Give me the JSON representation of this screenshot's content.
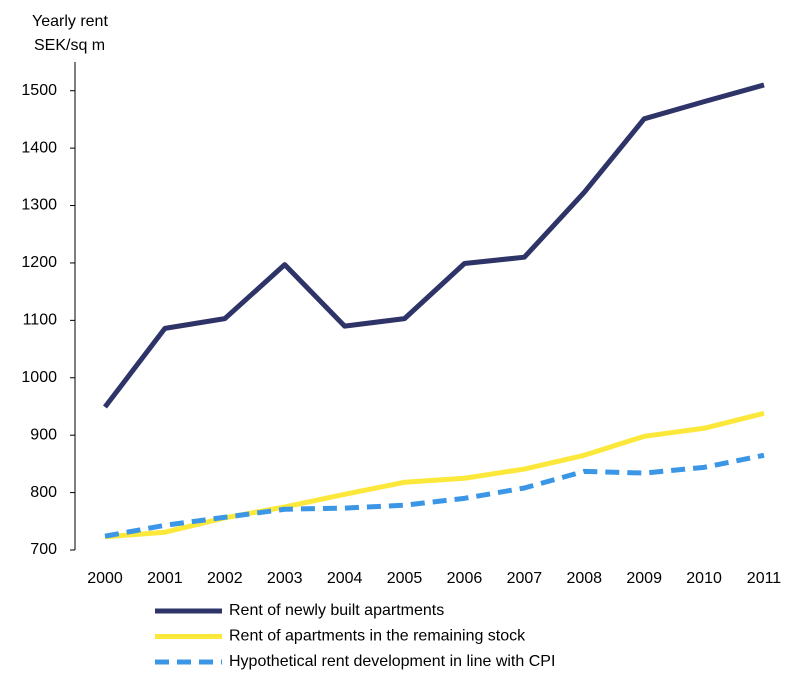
{
  "chart_data": {
    "type": "line",
    "ylabel": [
      "Yearly rent",
      "SEK/sq m"
    ],
    "categories": [
      "2000",
      "2001",
      "2002",
      "2003",
      "2004",
      "2005",
      "2006",
      "2007",
      "2008",
      "2009",
      "2010",
      "2011"
    ],
    "series": [
      {
        "name": "Rent of newly built apartments",
        "color": "#2e3467",
        "style": "solid",
        "values": [
          949,
          1086,
          1103,
          1197,
          1090,
          1103,
          1199,
          1210,
          1323,
          1451,
          1481,
          1510
        ]
      },
      {
        "name": "Rent of apartments in the remaining stock",
        "color": "#fce83a",
        "style": "solid",
        "values": [
          723,
          731,
          756,
          775,
          797,
          818,
          825,
          841,
          865,
          898,
          912,
          938
        ]
      },
      {
        "name": "Hypothetical rent development in line with CPI",
        "color": "#3b97e6",
        "style": "dashed",
        "values": [
          724,
          743,
          757,
          771,
          773,
          778,
          790,
          808,
          837,
          834,
          844,
          865
        ]
      }
    ],
    "ylim": [
      700,
      1550
    ],
    "yticks": [
      700,
      800,
      900,
      1000,
      1100,
      1200,
      1300,
      1400,
      1500
    ],
    "legend": "bottom"
  }
}
